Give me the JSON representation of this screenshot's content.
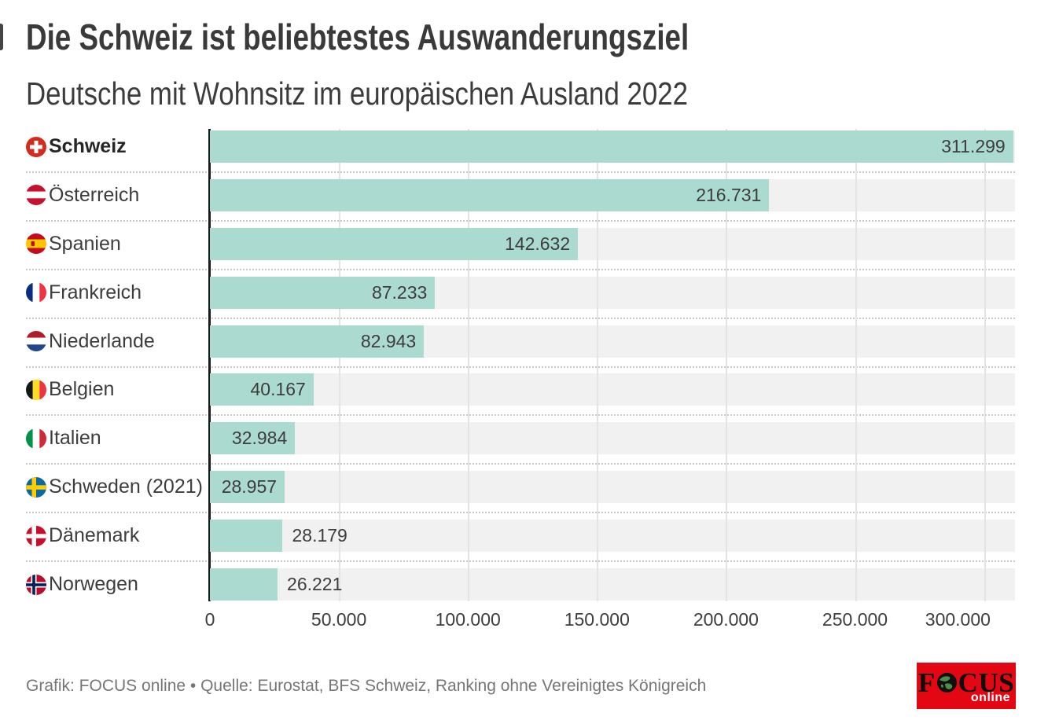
{
  "header": {
    "title": "Die Schweiz ist beliebtestes Auswanderungsziel",
    "subtitle": "Deutsche mit Wohnsitz im europäischen Ausland 2022"
  },
  "chart_data": {
    "type": "bar",
    "orientation": "horizontal",
    "title": "Die Schweiz ist beliebtestes Auswanderungsziel",
    "subtitle": "Deutsche mit Wohnsitz im europäischen Ausland 2022",
    "categories": [
      "Schweiz",
      "Österreich",
      "Spanien",
      "Frankreich",
      "Niederlande",
      "Belgien",
      "Italien",
      "Schweden (2021)",
      "Dänemark",
      "Norwegen"
    ],
    "values": [
      311299,
      216731,
      142632,
      87233,
      82943,
      40167,
      32984,
      28957,
      28179,
      26221
    ],
    "value_labels": [
      "311.299",
      "216.731",
      "142.632",
      "87.233",
      "82.943",
      "40.167",
      "32.984",
      "28.957",
      "28.179",
      "26.221"
    ],
    "flags": [
      "ch",
      "at",
      "es",
      "fr",
      "nl",
      "be",
      "it",
      "se",
      "dk",
      "no"
    ],
    "flag_icon_names": [
      "flag-switzerland-icon",
      "flag-austria-icon",
      "flag-spain-icon",
      "flag-france-icon",
      "flag-netherlands-icon",
      "flag-belgium-icon",
      "flag-italy-icon",
      "flag-sweden-icon",
      "flag-denmark-icon",
      "flag-norway-icon"
    ],
    "bold_rows": [
      0
    ],
    "value_inside": [
      true,
      true,
      true,
      true,
      true,
      true,
      true,
      true,
      false,
      false
    ],
    "xlim": [
      0,
      312000
    ],
    "x_ticks": [
      {
        "label": "0",
        "value": 0
      },
      {
        "label": "50.000",
        "value": 50000
      },
      {
        "label": "100.000",
        "value": 100000
      },
      {
        "label": "150.000",
        "value": 150000
      },
      {
        "label": "200.000",
        "value": 200000
      },
      {
        "label": "250.000",
        "value": 250000
      },
      {
        "label": "300.000",
        "value": 300000
      }
    ],
    "grid": true,
    "legend": "none",
    "bar_color": "#abdad0",
    "track_color": "#f1f1f1"
  },
  "footer": {
    "credit": "Grafik: FOCUS online • Quelle: Eurostat, BFS Schweiz, Ranking ohne Vereinigtes Königreich",
    "logo": {
      "text": "FOCUS",
      "suffix": "online",
      "bg_color": "#e30613"
    }
  }
}
